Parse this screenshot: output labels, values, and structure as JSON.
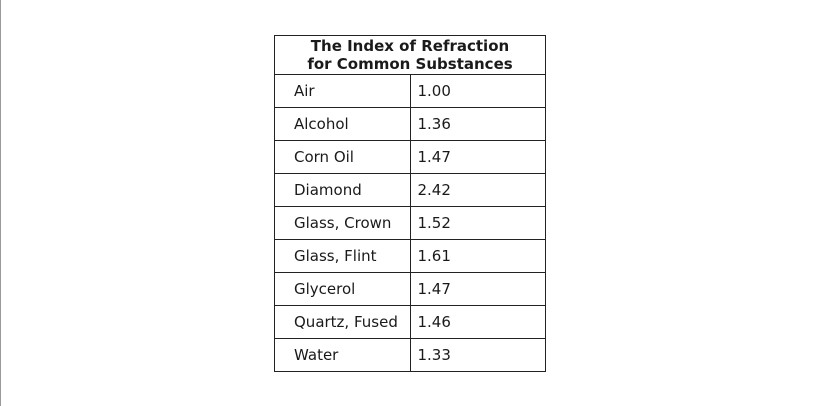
{
  "table": {
    "title_line1": "The Index of Refraction",
    "title_line2": "for Common Substances",
    "rows": [
      {
        "substance": "Air",
        "index": "1.00"
      },
      {
        "substance": "Alcohol",
        "index": "1.36"
      },
      {
        "substance": "Corn Oil",
        "index": "1.47"
      },
      {
        "substance": "Diamond",
        "index": "2.42"
      },
      {
        "substance": "Glass, Crown",
        "index": "1.52"
      },
      {
        "substance": "Glass, Flint",
        "index": "1.61"
      },
      {
        "substance": "Glycerol",
        "index": "1.47"
      },
      {
        "substance": "Quartz, Fused",
        "index": "1.46"
      },
      {
        "substance": "Water",
        "index": "1.33"
      }
    ]
  }
}
